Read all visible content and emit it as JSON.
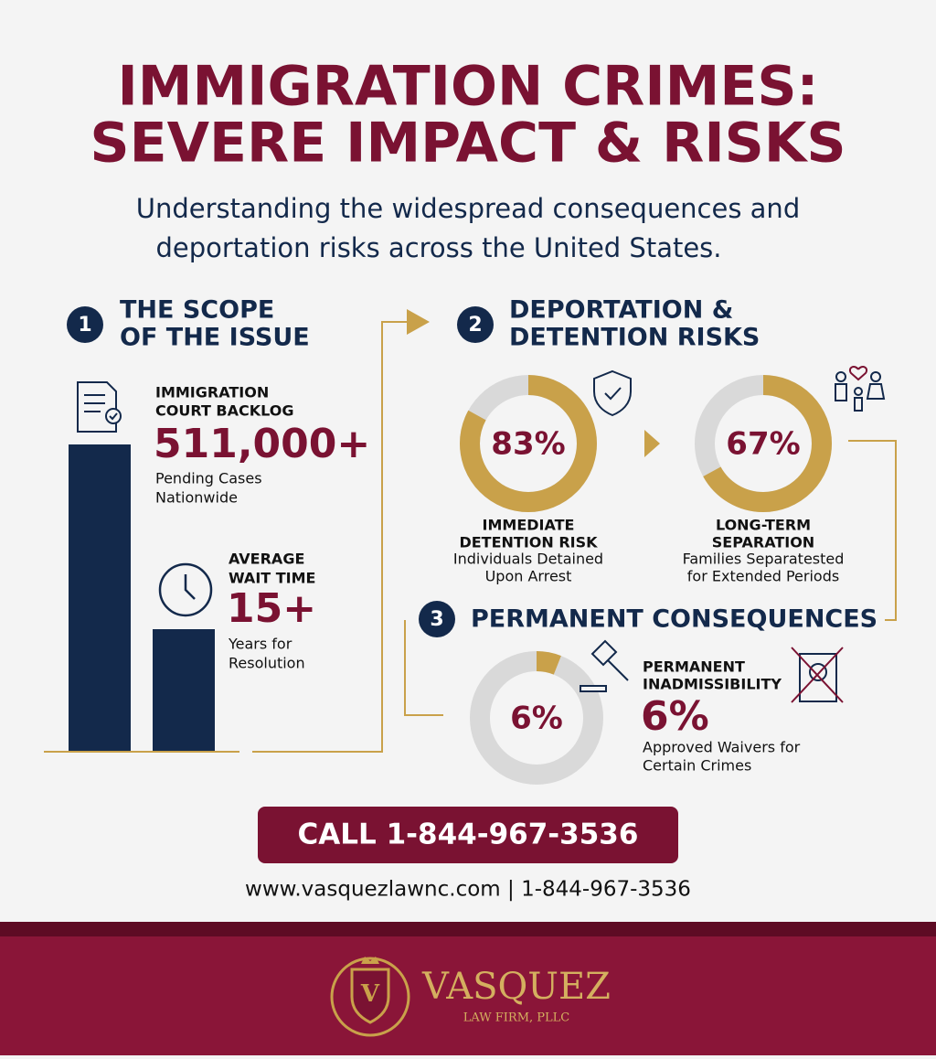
{
  "header": {
    "title_line1": "IMMIGRATION CRIMES:",
    "title_line2": "SEVERE IMPACT & RISKS",
    "subtitle_line1": "Understanding the widespread consequences and",
    "subtitle_line2": "deportation risks across the United States."
  },
  "sections": [
    {
      "number": "1",
      "title_line1": "THE SCOPE",
      "title_line2": "OF THE ISSUE",
      "stats": [
        {
          "label_line1": "IMMIGRATION",
          "label_line2": "COURT BACKLOG",
          "value_label": "511,000+",
          "desc_line1": "Pending Cases",
          "desc_line2": "Nationwide"
        },
        {
          "label_line1": "AVERAGE",
          "label_line2": "WAIT TIME",
          "value_label": "15+",
          "desc_line1": "Years for",
          "desc_line2": "Resolution"
        }
      ]
    },
    {
      "number": "2",
      "title_line1": "DEPORTATION &",
      "title_line2": "DETENTION RISKS",
      "stats": [
        {
          "value": 83,
          "value_label": "83%",
          "label_line1": "IMMEDIATE",
          "label_line2": "DETENTION RISK",
          "desc_line1": "Individuals Detained",
          "desc_line2": "Upon Arrest"
        },
        {
          "value": 67,
          "value_label": "67%",
          "label_line1": "LONG-TERM",
          "label_line2": "SEPARATION",
          "desc_line1": "Families Separatested",
          "desc_line2": "for Extended Periods"
        }
      ]
    },
    {
      "number": "3",
      "title": "PERMANENT CONSEQUENCES",
      "stats": [
        {
          "value": 6,
          "value_label": "6%",
          "label_line1": "PERMANENT",
          "label_line2": "INADMISSIBILITY",
          "big_label": "6%",
          "desc_line1": "Approved Waivers for",
          "desc_line2": "Certain Crimes"
        }
      ]
    }
  ],
  "cta": {
    "button": "CALL 1-844-967-3536",
    "contact": "www.vasquezlawnc.com | 1-844-967-3536"
  },
  "footer": {
    "brand": "VASQUEZ",
    "subbrand": "LAW FIRM, PLLC"
  }
}
